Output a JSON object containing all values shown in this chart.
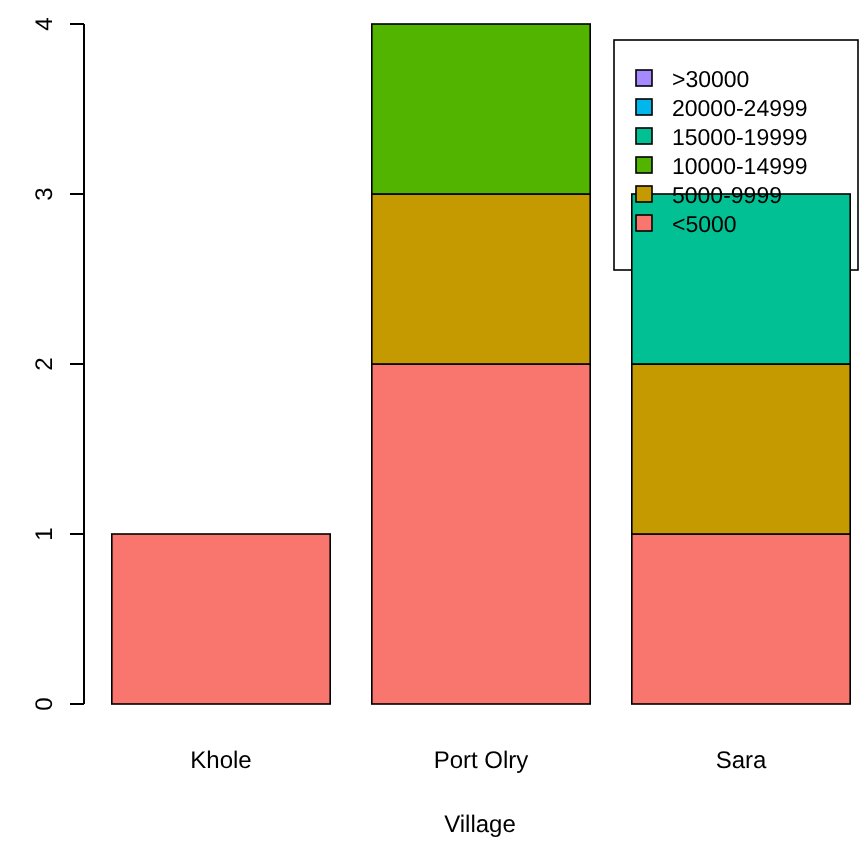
{
  "chart_data": {
    "type": "bar",
    "stacked": true,
    "xlabel": "Village",
    "categories": [
      "Khole",
      "Port Olry",
      "Sara"
    ],
    "series": [
      {
        "name": "<5000",
        "color": "#f8766d",
        "values": [
          1,
          2,
          1
        ]
      },
      {
        "name": "5000-9999",
        "color": "#c49a00",
        "values": [
          0,
          1,
          1
        ]
      },
      {
        "name": "10000-14999",
        "color": "#53b400",
        "values": [
          0,
          1,
          0
        ]
      },
      {
        "name": "15000-19999",
        "color": "#00c094",
        "values": [
          0,
          0,
          1
        ]
      },
      {
        "name": "20000-24999",
        "color": "#00b6eb",
        "values": [
          0,
          0,
          0
        ]
      },
      {
        "name": ">30000",
        "color": "#a58aff",
        "values": [
          0,
          0,
          0
        ]
      }
    ],
    "ylim": [
      0,
      4
    ],
    "yticks": [
      0,
      1,
      2,
      3,
      4
    ],
    "grid": false,
    "legend": "top right"
  }
}
